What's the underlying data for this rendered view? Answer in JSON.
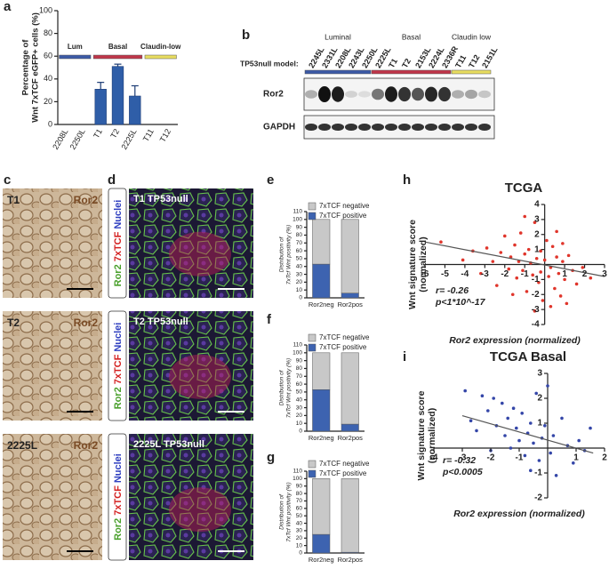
{
  "panel_labels": [
    "a",
    "b",
    "c",
    "d",
    "e",
    "f",
    "g",
    "h",
    "i"
  ],
  "blot": {
    "groups": [
      {
        "name": "Luminal",
        "color": "#3c5aa6"
      },
      {
        "name": "Basal",
        "color": "#c0364a"
      },
      {
        "name": "Claudin low",
        "color": "#e8dd60"
      }
    ],
    "model_label": "TP53null model:",
    "samples": [
      "2245L",
      "2331L",
      "2208L",
      "2243L",
      "2250L",
      "2225L",
      "T1",
      "T2",
      "2153L",
      "2224L",
      "2336R",
      "T11",
      "T12",
      "2151L"
    ],
    "rows": [
      "Ror2",
      "GAPDH"
    ]
  },
  "micrographs_c": [
    {
      "label": "T1",
      "stain": "Ror2"
    },
    {
      "label": "T2",
      "stain": "Ror2"
    },
    {
      "label": "2225L",
      "stain": "Ror2"
    }
  ],
  "micrographs_d": {
    "side_label": [
      "Ror2",
      "7xTCF",
      "Nuclei"
    ],
    "titles": [
      "T1 TP53null",
      "T2 TP53null",
      "2225L TP53null"
    ]
  },
  "chart_data": [
    {
      "type": "bar",
      "ylabel": [
        "Percentage of",
        "Wnt 7xTCF eGFP+ cells (%)"
      ],
      "categories": [
        "2208L",
        "2250L",
        "T1",
        "T2",
        "2225L",
        "T11",
        "T12"
      ],
      "values": [
        0,
        0,
        31,
        51,
        25,
        0,
        0
      ],
      "errors": [
        0,
        0,
        6,
        2,
        9,
        0,
        0
      ],
      "color": "#2f5ea8",
      "ylim": [
        0,
        100
      ],
      "yticks": [
        0,
        20,
        40,
        60,
        80,
        100
      ],
      "groups": [
        {
          "name": "Lum",
          "color": "#3c5aa6"
        },
        {
          "name": "Basal",
          "color": "#c0364a"
        },
        {
          "name": "Claudin-low",
          "color": "#e8dd60"
        }
      ]
    },
    {
      "type": "stacked_bar",
      "ylabel": [
        "Distribution of",
        "7xTcf Wnt positivity (%)"
      ],
      "categories": [
        "Ror2neg",
        "Ror2pos"
      ],
      "series": [
        {
          "name": "7xTCF positive",
          "color": "#3d63b0",
          "values": [
            43,
            6
          ]
        },
        {
          "name": "7xTCF negative",
          "color": "#c8c8c8",
          "values": [
            57,
            94
          ]
        }
      ],
      "ylim": [
        0,
        110
      ],
      "yticks": [
        0,
        10,
        20,
        30,
        40,
        50,
        60,
        70,
        80,
        90,
        100,
        110
      ]
    },
    {
      "type": "stacked_bar",
      "ylabel": [
        "Distribution of",
        "7xTcf Wnt positivity (%)"
      ],
      "categories": [
        "Ror2neg",
        "Ror2pos"
      ],
      "series": [
        {
          "name": "7xTCF positive",
          "color": "#3d63b0",
          "values": [
            53,
            9
          ]
        },
        {
          "name": "7xTCF negative",
          "color": "#c8c8c8",
          "values": [
            47,
            91
          ]
        }
      ],
      "ylim": [
        0,
        110
      ],
      "yticks": [
        0,
        10,
        20,
        30,
        40,
        50,
        60,
        70,
        80,
        90,
        100,
        110
      ]
    },
    {
      "type": "stacked_bar",
      "ylabel": [
        "Distribution of",
        "7xTcf Wnt positivity (%)"
      ],
      "categories": [
        "Ror2neg",
        "Ror2pos"
      ],
      "series": [
        {
          "name": "7xTCF positive",
          "color": "#3d63b0",
          "values": [
            25,
            1
          ]
        },
        {
          "name": "7xTCF negative",
          "color": "#c8c8c8",
          "values": [
            75,
            99
          ]
        }
      ],
      "ylim": [
        0,
        110
      ],
      "yticks": [
        0,
        10,
        20,
        30,
        40,
        50,
        60,
        70,
        80,
        90,
        100,
        110
      ]
    },
    {
      "type": "scatter",
      "title": "TCGA",
      "xlabel": "Ror2 expression (normalized)",
      "ylabel": [
        "Wnt signature score",
        "(normalized)"
      ],
      "annotations": [
        "r= -0.26",
        "p<1*10^-17"
      ],
      "color": "#e0352b",
      "x": [
        -5.2,
        -4.1,
        -3.6,
        -3.2,
        -2.9,
        -2.6,
        -2.4,
        -2.2,
        -2.0,
        -1.8,
        -1.7,
        -1.5,
        -1.4,
        -1.3,
        -1.2,
        -1.1,
        -1.0,
        -0.9,
        -0.8,
        -0.7,
        -0.6,
        -0.5,
        -0.4,
        -0.3,
        -0.2,
        -0.1,
        0.0,
        0.1,
        0.2,
        0.3,
        0.4,
        0.5,
        0.6,
        0.7,
        0.8,
        0.9,
        1.0,
        1.2,
        1.4,
        1.6,
        1.9,
        2.3,
        -0.5,
        0.3,
        -1.0,
        0.6,
        -0.2,
        0.9,
        -1.6,
        1.1
      ],
      "values": [
        1.5,
        0.3,
        0.9,
        -0.6,
        1.1,
        0.2,
        -1.4,
        0.8,
        1.9,
        -0.3,
        0.5,
        1.3,
        -0.9,
        0.2,
        2.1,
        -0.4,
        0.7,
        -1.8,
        1.0,
        0.1,
        -0.7,
        2.8,
        0.4,
        -1.2,
        0.9,
        -2.4,
        0.3,
        1.6,
        -0.8,
        -0.2,
        1.2,
        -1.6,
        0.5,
        -0.6,
        -2.1,
        0.2,
        -1.0,
        0.6,
        -0.4,
        -1.3,
        -0.2,
        -0.9,
        -3.1,
        -2.8,
        3.2,
        2.2,
        -0.5,
        1.4,
        -2.0,
        -2.6
      ],
      "fit": {
        "x": [
          -6,
          3
        ],
        "y": [
          1.5,
          -0.8
        ]
      },
      "xlim": [
        -6,
        3
      ],
      "xticks": [
        -6,
        -5,
        -4,
        -3,
        -2,
        -1,
        1,
        2,
        3
      ],
      "ylim": [
        -4,
        4
      ],
      "yticks": [
        -4,
        -3,
        -2,
        -1,
        1,
        2,
        3,
        4
      ]
    },
    {
      "type": "scatter",
      "title": "TCGA Basal",
      "xlabel": "Ror2 expression (normalized)",
      "ylabel": [
        "Wnt signature score",
        "(normalized)"
      ],
      "annotations": [
        "r= -0.32",
        "p<0.0005"
      ],
      "color": "#3446a8",
      "x": [
        -2.9,
        -2.7,
        -2.5,
        -2.3,
        -2.1,
        -2.0,
        -1.9,
        -1.8,
        -1.6,
        -1.5,
        -1.4,
        -1.3,
        -1.2,
        -1.1,
        -1.0,
        -0.9,
        -0.8,
        -0.7,
        -0.6,
        -0.5,
        -0.4,
        -0.3,
        -0.2,
        -0.1,
        0.1,
        0.2,
        0.3,
        0.5,
        0.7,
        0.9,
        1.1,
        1.3,
        1.5,
        -0.6,
        0.0
      ],
      "values": [
        2.3,
        1.1,
        0.7,
        2.1,
        1.5,
        -0.1,
        2.0,
        0.9,
        1.8,
        0.5,
        1.2,
        0.0,
        1.6,
        0.8,
        0.3,
        1.4,
        -0.3,
        0.6,
        1.0,
        0.2,
        2.2,
        -0.5,
        0.4,
        0.9,
        -0.2,
        0.5,
        -1.1,
        1.2,
        0.1,
        -0.6,
        0.3,
        -0.1,
        0.8,
        -0.9,
        2.5
      ],
      "fit": {
        "x": [
          -3,
          1.6
        ],
        "y": [
          1.3,
          -0.2
        ]
      },
      "xlim": [
        -4,
        2
      ],
      "xticks": [
        -4,
        -3,
        -2,
        -1,
        1,
        2
      ],
      "ylim": [
        -2,
        3
      ],
      "yticks": [
        -2,
        -1,
        1,
        2,
        3
      ]
    }
  ]
}
